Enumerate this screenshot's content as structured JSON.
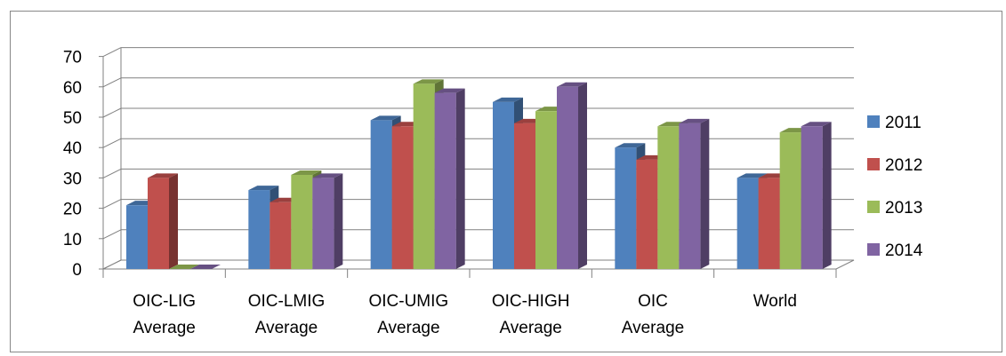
{
  "chart_data": {
    "type": "bar",
    "style": "3d-clustered-column",
    "categories": [
      [
        "OIC-LIG",
        "Average"
      ],
      [
        "OIC-LMIG",
        "Average"
      ],
      [
        "OIC-UMIG",
        "Average"
      ],
      [
        "OIC-HIGH",
        "Average"
      ],
      [
        "OIC",
        "Average"
      ],
      [
        "World"
      ]
    ],
    "series": [
      {
        "name": "2011",
        "color": "#4F81BD",
        "values": [
          21,
          26,
          49,
          55,
          40,
          30
        ]
      },
      {
        "name": "2012",
        "color": "#C0504D",
        "values": [
          30,
          22,
          47,
          48,
          36,
          30
        ]
      },
      {
        "name": "2013",
        "color": "#9BBB59",
        "values": [
          0,
          31,
          61,
          52,
          47,
          45
        ]
      },
      {
        "name": "2014",
        "color": "#8064A2",
        "values": [
          0,
          30,
          58,
          60,
          48,
          47
        ]
      }
    ],
    "ylim": [
      0,
      70
    ],
    "yticks": [
      0,
      10,
      20,
      30,
      40,
      50,
      60,
      70
    ],
    "grid": true,
    "legend": "right"
  }
}
